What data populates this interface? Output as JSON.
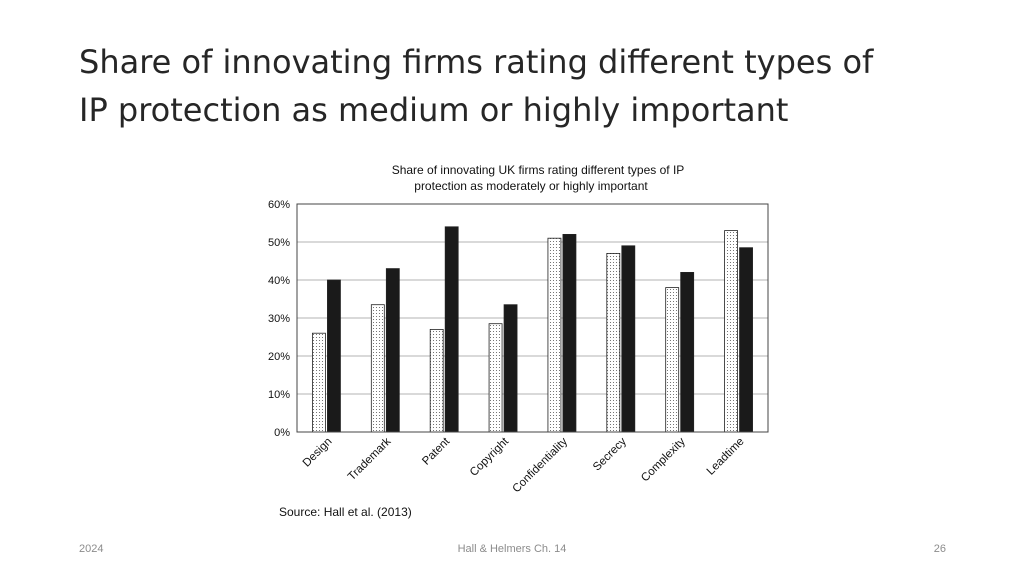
{
  "slide": {
    "title_lines": [
      "Share of innovating firms rating different types of",
      "IP protection as medium or highly important"
    ],
    "footer_left": "2024",
    "footer_center": "Hall & Helmers Ch. 14",
    "footer_right": "26"
  },
  "chart_data": {
    "type": "bar",
    "title_lines": [
      "Share of innovating UK firms rating different types of IP",
      "protection as moderately or highly important"
    ],
    "categories": [
      "Design",
      "Trademark",
      "Patent",
      "Copyright",
      "Confidentiality",
      "Secrecy",
      "Complexity",
      "Leadtime"
    ],
    "series": [
      {
        "fill": "dotted",
        "values": [
          26,
          33.5,
          27,
          28.5,
          51,
          47,
          38,
          53
        ]
      },
      {
        "fill": "#1a1a1a",
        "values": [
          40,
          43,
          54,
          33.5,
          52,
          49,
          42,
          48.5
        ]
      }
    ],
    "ylim": [
      0,
      60
    ],
    "yticks": [
      0,
      10,
      20,
      30,
      40,
      50,
      60
    ],
    "ytick_labels": [
      "0%",
      "10%",
      "20%",
      "30%",
      "40%",
      "50%",
      "60%"
    ],
    "grid": true,
    "source": "Source: Hall et al. (2013)"
  }
}
